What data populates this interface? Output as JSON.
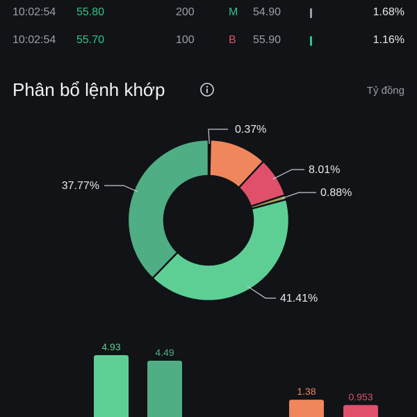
{
  "trades": [
    {
      "time": "10:02:54",
      "price": "55.80",
      "volume": "200",
      "side": "M",
      "side_color": "#2fc58a",
      "ref_price": "54.90",
      "bar_color": "#9aa0a8",
      "percent": "1.68%"
    },
    {
      "time": "10:02:54",
      "price": "55.70",
      "volume": "100",
      "side": "B",
      "side_color": "#e0506a",
      "ref_price": "55.90",
      "bar_color": "#2fc58a",
      "percent": "1.16%"
    }
  ],
  "section": {
    "title": "Phân bổ lệnh khớp",
    "info_icon": "info-icon",
    "unit": "Tỷ đồng"
  },
  "chart_data": [
    {
      "type": "pie",
      "style": "donut",
      "slices": [
        {
          "label": "0.37%",
          "value": 0.37,
          "color": "#a7a35a"
        },
        {
          "label": "11.56%",
          "value": 11.56,
          "color": "#f0865b"
        },
        {
          "label": "8.01%",
          "value": 8.01,
          "color": "#e0506a"
        },
        {
          "label": "0.88%",
          "value": 0.88,
          "color": "#a7a35a"
        },
        {
          "label": "41.41%",
          "value": 41.41,
          "color": "#5ecf94"
        },
        {
          "label": "37.77%",
          "value": 37.77,
          "color": "#4fae83"
        }
      ],
      "shown_labels": [
        "0.37%",
        "8.01%",
        "0.88%",
        "41.41%",
        "37.77%"
      ]
    },
    {
      "type": "bar",
      "values": [
        4.93,
        4.49,
        1.38,
        0.953
      ],
      "labels": [
        "4.93",
        "4.49",
        "1.38",
        "0.953"
      ],
      "colors": [
        "#5ecf94",
        "#4fae83",
        "#f0865b",
        "#e0506a"
      ],
      "label_colors": [
        "#5ecf94",
        "#4fae83",
        "#f0865b",
        "#e0506a"
      ]
    }
  ]
}
